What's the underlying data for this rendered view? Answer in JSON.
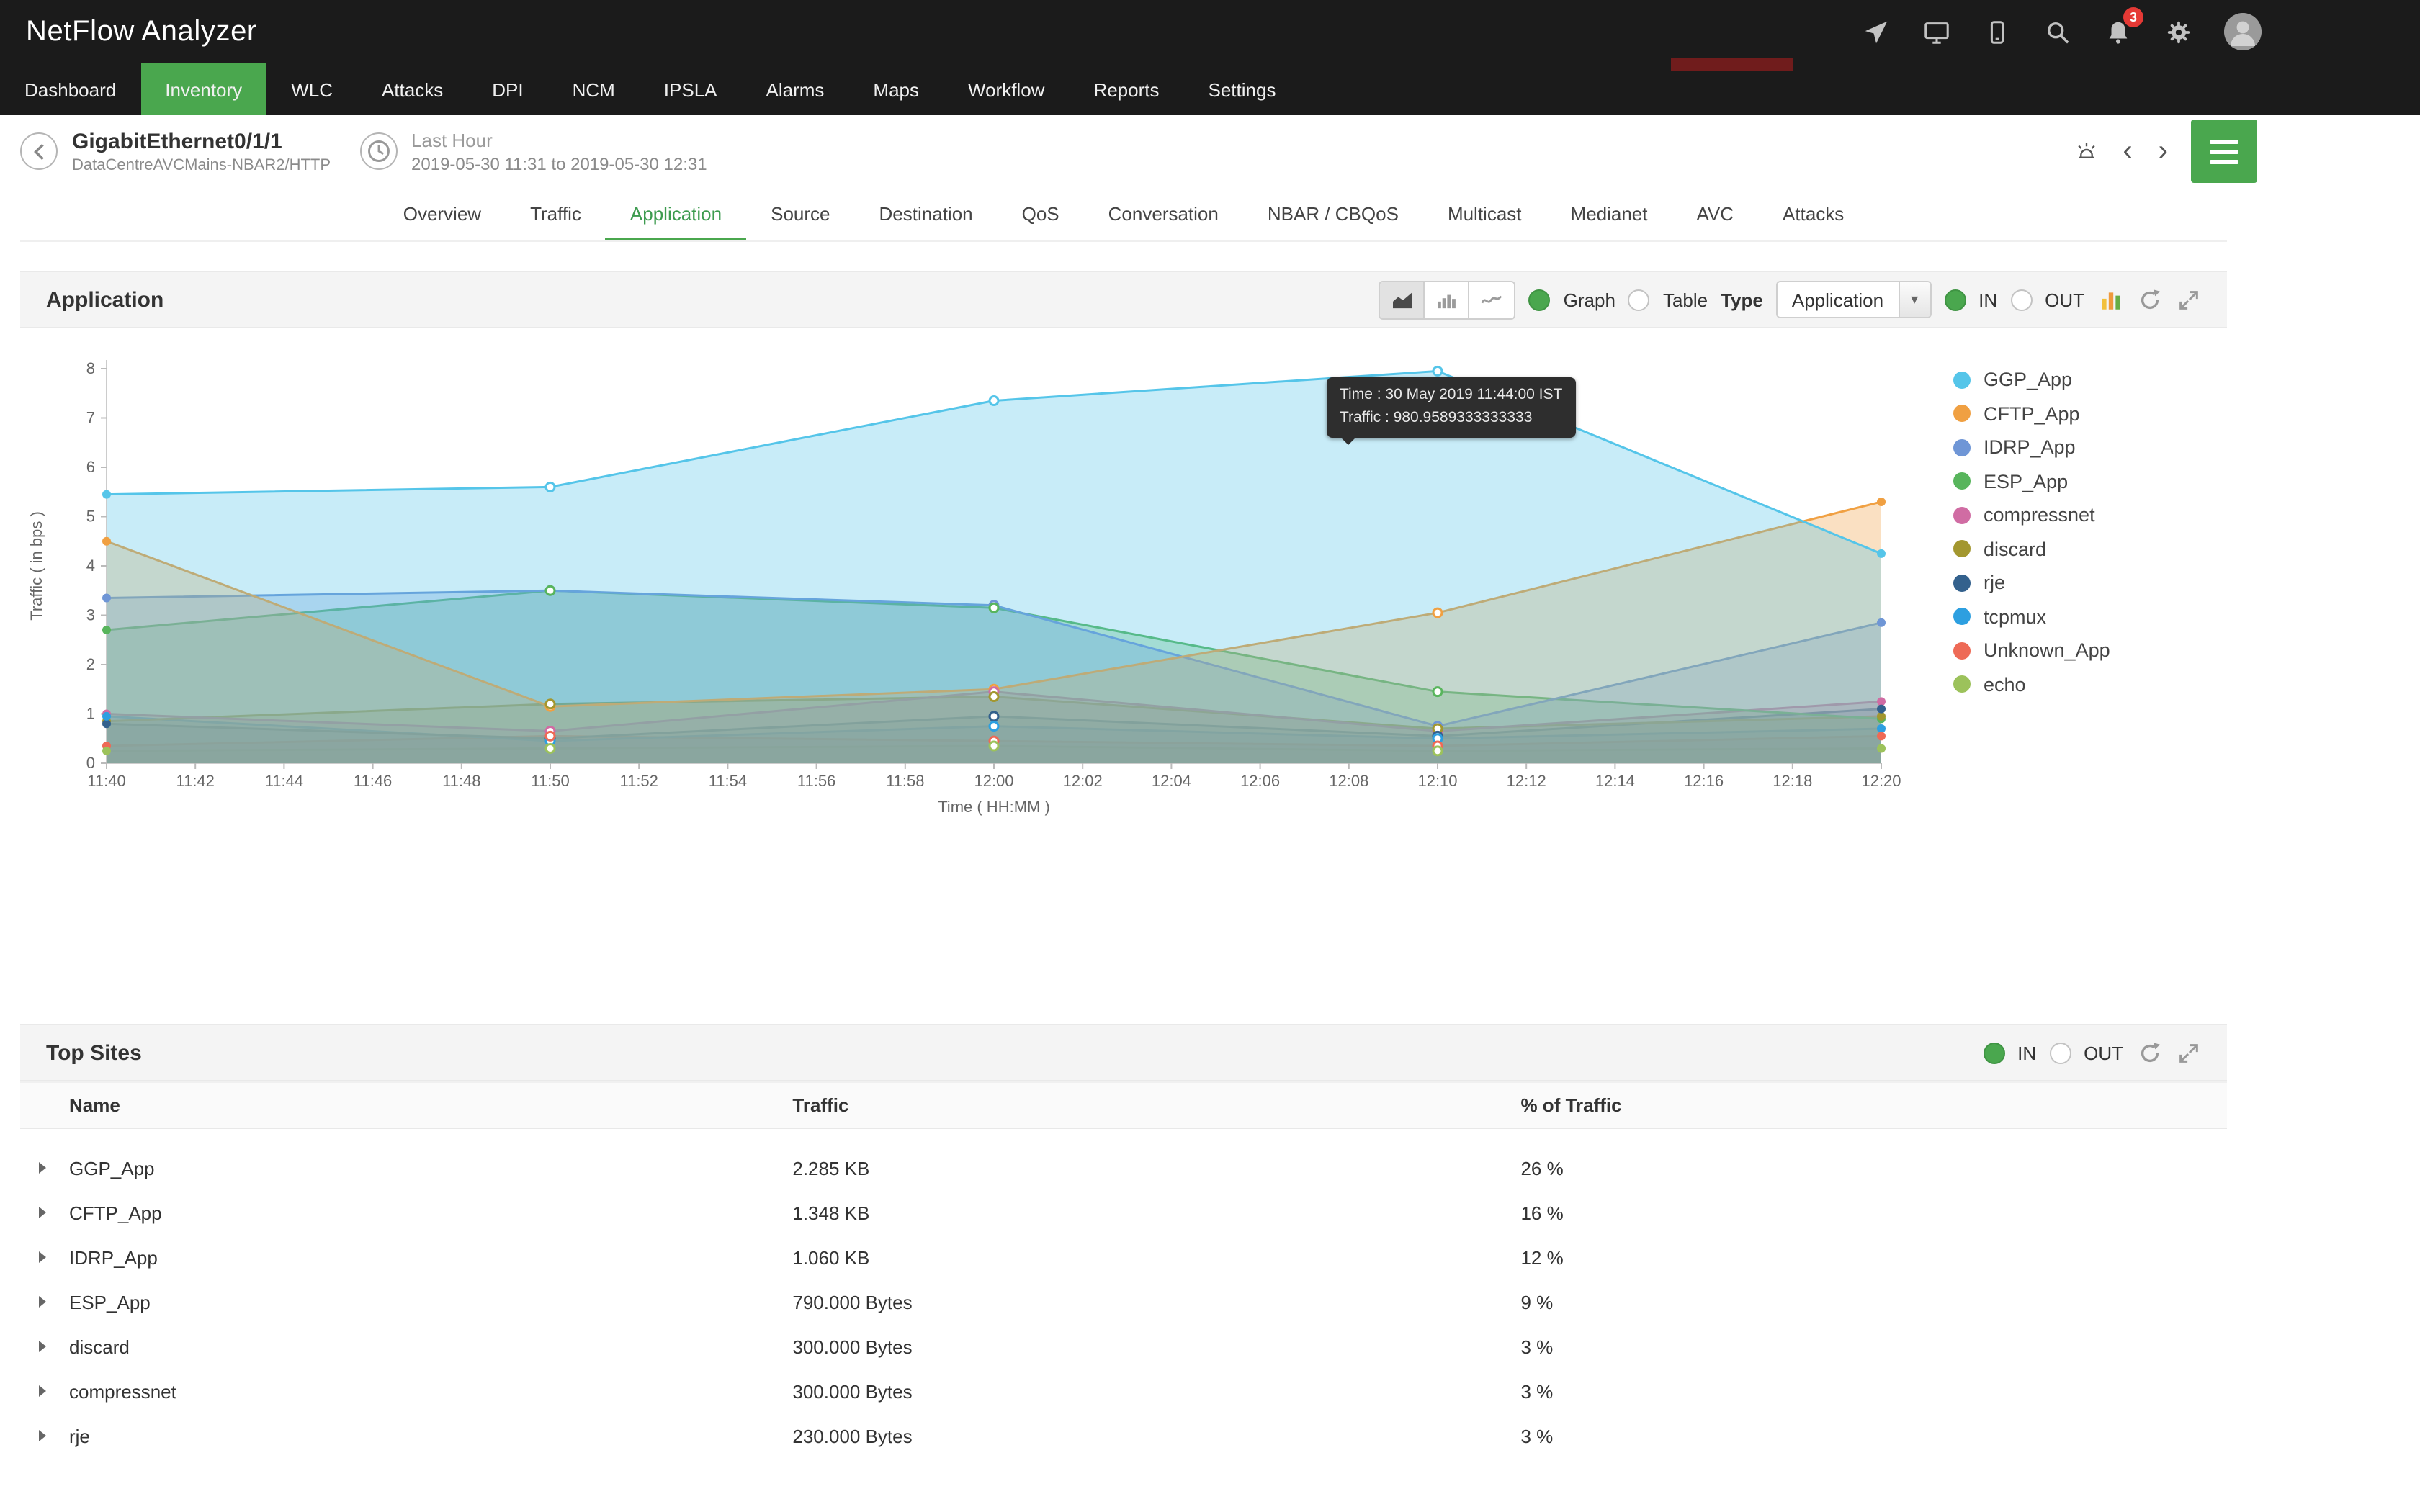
{
  "app": {
    "title": "NetFlow Analyzer",
    "notification_count": "3",
    "accent_green": "#4aa74e",
    "topbar_color": "#1b1b1b",
    "red_strip_color": "#701c1c",
    "icons": [
      "send-icon",
      "screen-share-icon",
      "mobile-icon",
      "search-icon",
      "notifications-bell-icon",
      "gear-icon",
      "avatar"
    ]
  },
  "nav": {
    "items": [
      {
        "label": "Dashboard",
        "active": false
      },
      {
        "label": "Inventory",
        "active": true
      },
      {
        "label": "WLC",
        "active": false
      },
      {
        "label": "Attacks",
        "active": false
      },
      {
        "label": "DPI",
        "active": false
      },
      {
        "label": "NCM",
        "active": false
      },
      {
        "label": "IPSLA",
        "active": false
      },
      {
        "label": "Alarms",
        "active": false
      },
      {
        "label": "Maps",
        "active": false
      },
      {
        "label": "Workflow",
        "active": false
      },
      {
        "label": "Reports",
        "active": false
      },
      {
        "label": "Settings",
        "active": false
      }
    ]
  },
  "header": {
    "interface_name": "GigabitEthernet0/1/1",
    "interface_subtitle": "DataCentreAVCMains-NBAR2/HTTP",
    "time_range_label": "Last Hour",
    "time_range_value": "2019-05-30 11:31 to 2019-05-30 12:31"
  },
  "tabs": {
    "items": [
      "Overview",
      "Traffic",
      "Application",
      "Source",
      "Destination",
      "QoS",
      "Conversation",
      "NBAR / CBQoS",
      "Multicast",
      "Medianet",
      "AVC",
      "Attacks"
    ],
    "active": "Application"
  },
  "application_panel": {
    "title": "Application",
    "graph_label": "Graph",
    "table_label": "Table",
    "type_label": "Type",
    "type_value": "Application",
    "in_label": "IN",
    "out_label": "OUT",
    "tooltip": {
      "line1": "Time : 30 May 2019 11:44:00 IST",
      "line2": "Traffic : 980.9589333333333"
    }
  },
  "chart_data": {
    "type": "area",
    "title": "",
    "xlabel": "Time ( HH:MM )",
    "ylabel": "Traffic ( in bps )",
    "ylim": [
      0,
      8
    ],
    "y_ticks": [
      0,
      1,
      2,
      3,
      4,
      5,
      6,
      7,
      8
    ],
    "x_tick_labels": [
      "11:40",
      "11:42",
      "11:44",
      "11:46",
      "11:48",
      "11:50",
      "11:52",
      "11:54",
      "11:56",
      "11:58",
      "12:00",
      "12:02",
      "12:04",
      "12:06",
      "12:08",
      "12:10",
      "12:12",
      "12:14",
      "12:16",
      "12:18",
      "12:20"
    ],
    "x": [
      "11:40",
      "11:50",
      "12:00",
      "12:10",
      "12:20"
    ],
    "grid": false,
    "legend_position": "right",
    "series": [
      {
        "name": "GGP_App",
        "color": "#55c5e9",
        "values": [
          5.45,
          5.6,
          7.35,
          7.95,
          4.25
        ]
      },
      {
        "name": "CFTP_App",
        "color": "#f0a042",
        "values": [
          4.5,
          1.15,
          1.5,
          3.05,
          5.3
        ]
      },
      {
        "name": "IDRP_App",
        "color": "#6f96d6",
        "values": [
          3.35,
          3.5,
          3.2,
          0.75,
          2.85
        ]
      },
      {
        "name": "ESP_App",
        "color": "#58b55c",
        "values": [
          2.7,
          3.5,
          3.15,
          1.45,
          0.9
        ]
      },
      {
        "name": "compressnet",
        "color": "#d06ca3",
        "values": [
          1.0,
          0.65,
          1.45,
          0.65,
          1.25
        ]
      },
      {
        "name": "discard",
        "color": "#a3972f",
        "values": [
          0.85,
          1.2,
          1.35,
          0.7,
          0.95
        ]
      },
      {
        "name": "rje",
        "color": "#33618d",
        "values": [
          0.8,
          0.5,
          0.95,
          0.55,
          1.1
        ]
      },
      {
        "name": "tcpmux",
        "color": "#2d9fe0",
        "values": [
          0.95,
          0.45,
          0.75,
          0.5,
          0.7
        ]
      },
      {
        "name": "Unknown_App",
        "color": "#ee6a56",
        "values": [
          0.35,
          0.55,
          0.45,
          0.35,
          0.55
        ]
      },
      {
        "name": "echo",
        "color": "#9cc25b",
        "values": [
          0.25,
          0.3,
          0.35,
          0.25,
          0.3
        ]
      }
    ]
  },
  "top_sites": {
    "title": "Top Sites",
    "in_label": "IN",
    "out_label": "OUT",
    "columns": [
      "Name",
      "Traffic",
      "% of Traffic"
    ],
    "rows": [
      {
        "name": "GGP_App",
        "traffic": "2.285 KB",
        "percent": "26 %"
      },
      {
        "name": "CFTP_App",
        "traffic": "1.348 KB",
        "percent": "16 %"
      },
      {
        "name": "IDRP_App",
        "traffic": "1.060 KB",
        "percent": "12 %"
      },
      {
        "name": "ESP_App",
        "traffic": "790.000 Bytes",
        "percent": "9 %"
      },
      {
        "name": "discard",
        "traffic": "300.000 Bytes",
        "percent": "3 %"
      },
      {
        "name": "compressnet",
        "traffic": "300.000 Bytes",
        "percent": "3 %"
      },
      {
        "name": "rje",
        "traffic": "230.000 Bytes",
        "percent": "3 %"
      }
    ]
  }
}
